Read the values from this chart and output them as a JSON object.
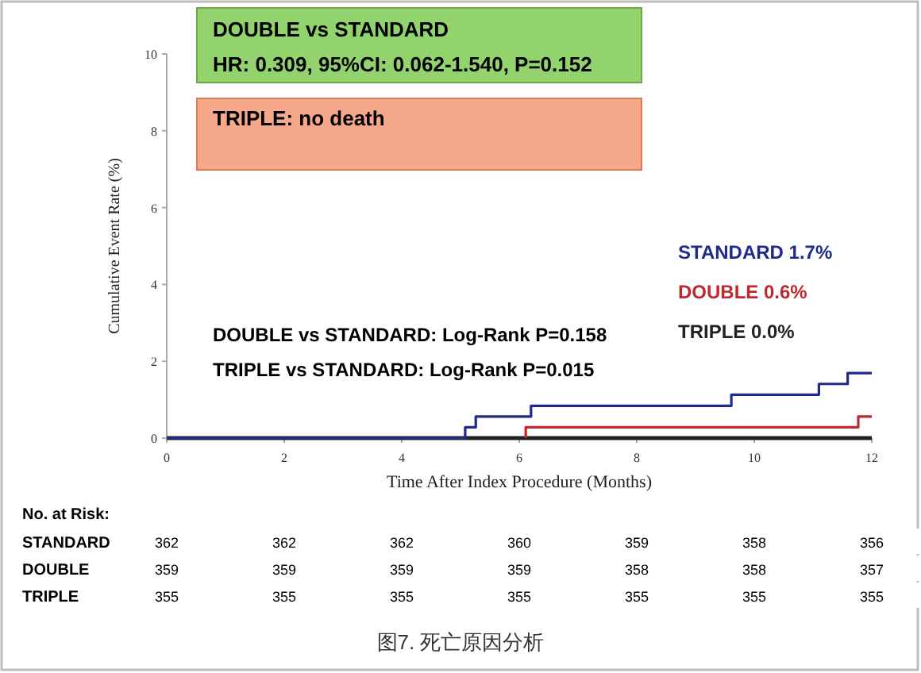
{
  "chart_data": [
    {
      "type": "step",
      "xlabel": "Time After Index Procedure (Months)",
      "ylabel": "Cumulative Event Rate (%)",
      "xlim": [
        0,
        12
      ],
      "ylim": [
        0,
        10
      ],
      "xticks": [
        0,
        2,
        4,
        6,
        8,
        10,
        12
      ],
      "yticks": [
        0,
        2,
        4,
        6,
        8,
        10
      ],
      "grid": false,
      "series": [
        {
          "name": "STANDARD 1.7%",
          "color": "#1f2a8c",
          "x": [
            0,
            5.08,
            5.26,
            6.2,
            9.61,
            11.1,
            11.59,
            12
          ],
          "values": [
            0,
            0.28,
            0.56,
            0.84,
            1.13,
            1.41,
            1.69,
            1.69
          ]
        },
        {
          "name": "DOUBLE 0.6%",
          "color": "#c0282d",
          "x": [
            6.11,
            6.11,
            11.77,
            12
          ],
          "values": [
            0,
            0.28,
            0.56,
            0.56
          ]
        },
        {
          "name": "TRIPLE  0.0%",
          "color": "#222222",
          "x": [
            0,
            12
          ],
          "values": [
            0,
            0
          ]
        }
      ],
      "annotations": [
        "DOUBLE vs STANDARD",
        "HR: 0.309, 95%CI: 0.062-1.540, P=0.152",
        "TRIPLE: no death",
        "DOUBLE vs STANDARD: Log-Rank P=0.158",
        "TRIPLE vs STANDARD: Log-Rank P=0.015",
        "图7. 死亡原因分析"
      ]
    },
    {
      "type": "heatmap",
      "title": "No. at Risk:",
      "categories": [
        null,
        null,
        null,
        null,
        null,
        null,
        null
      ],
      "y_categories": [
        "STANDARD",
        "DOUBLE",
        "TRIPLE"
      ],
      "data_labels": true,
      "cells": [
        [
          362,
          362,
          362,
          360,
          359,
          358,
          356
        ],
        [
          359,
          359,
          359,
          359,
          358,
          358,
          357
        ],
        [
          355,
          355,
          355,
          355,
          355,
          355,
          355
        ]
      ]
    }
  ]
}
